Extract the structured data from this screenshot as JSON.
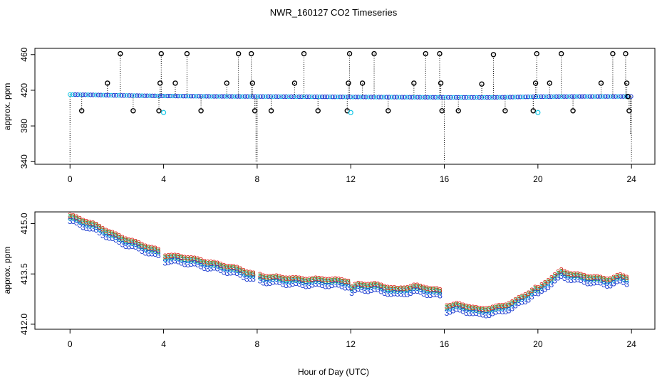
{
  "title": "NWR_160127  CO2 Timeseries",
  "xlabel": "Hour of Day (UTC)",
  "chart_data": [
    {
      "type": "scatter",
      "name": "top-panel",
      "ylabel": "approx. ppm",
      "xlim": [
        -1.5,
        25
      ],
      "ylim": [
        337,
        467
      ],
      "xticks": [
        "0",
        "4",
        "8",
        "12",
        "16",
        "20",
        "24"
      ],
      "yticks": [
        "340",
        "380",
        "420",
        "460"
      ],
      "baseline": {
        "x": [
          0,
          1,
          2,
          4,
          6,
          8,
          12,
          16,
          18,
          20,
          22,
          24
        ],
        "y": [
          415.2,
          414.8,
          414.3,
          413.6,
          413.2,
          413.0,
          412.5,
          412.1,
          412.0,
          412.8,
          413.1,
          413.0
        ]
      },
      "outliers_high": [
        {
          "x": 1.6,
          "y": 428
        },
        {
          "x": 2.15,
          "y": 461
        },
        {
          "x": 3.85,
          "y": 428
        },
        {
          "x": 3.9,
          "y": 461
        },
        {
          "x": 4.5,
          "y": 428
        },
        {
          "x": 5.0,
          "y": 461
        },
        {
          "x": 6.7,
          "y": 428
        },
        {
          "x": 7.2,
          "y": 461
        },
        {
          "x": 7.75,
          "y": 461
        },
        {
          "x": 7.8,
          "y": 428
        },
        {
          "x": 9.6,
          "y": 428
        },
        {
          "x": 10.0,
          "y": 461
        },
        {
          "x": 11.9,
          "y": 428
        },
        {
          "x": 11.95,
          "y": 461
        },
        {
          "x": 12.5,
          "y": 428
        },
        {
          "x": 13.0,
          "y": 461
        },
        {
          "x": 14.7,
          "y": 428
        },
        {
          "x": 15.2,
          "y": 461
        },
        {
          "x": 15.8,
          "y": 461
        },
        {
          "x": 15.85,
          "y": 428
        },
        {
          "x": 17.6,
          "y": 427
        },
        {
          "x": 18.1,
          "y": 460
        },
        {
          "x": 19.9,
          "y": 428
        },
        {
          "x": 19.95,
          "y": 461
        },
        {
          "x": 20.5,
          "y": 428
        },
        {
          "x": 21.0,
          "y": 461
        },
        {
          "x": 22.7,
          "y": 428
        },
        {
          "x": 23.2,
          "y": 461
        },
        {
          "x": 23.75,
          "y": 461
        },
        {
          "x": 23.8,
          "y": 428
        },
        {
          "x": 23.85,
          "y": 413
        }
      ],
      "outliers_low": [
        {
          "x": 0.5,
          "y": 397
        },
        {
          "x": 2.7,
          "y": 397
        },
        {
          "x": 3.8,
          "y": 397
        },
        {
          "x": 5.6,
          "y": 397
        },
        {
          "x": 7.9,
          "y": 397
        },
        {
          "x": 8.6,
          "y": 397
        },
        {
          "x": 10.6,
          "y": 397
        },
        {
          "x": 11.85,
          "y": 397
        },
        {
          "x": 13.6,
          "y": 397
        },
        {
          "x": 15.9,
          "y": 397
        },
        {
          "x": 16.6,
          "y": 397
        },
        {
          "x": 18.6,
          "y": 397
        },
        {
          "x": 19.8,
          "y": 397
        },
        {
          "x": 21.5,
          "y": 397
        },
        {
          "x": 23.9,
          "y": 397
        }
      ],
      "cyan_points": [
        {
          "x": 4.0,
          "y": 395
        },
        {
          "x": 12.0,
          "y": 395
        },
        {
          "x": 20.0,
          "y": 395
        }
      ],
      "down_spikes": [
        {
          "x": 0.0,
          "y": 340
        },
        {
          "x": 7.95,
          "y": 340
        },
        {
          "x": 8.0,
          "y": 340
        },
        {
          "x": 16.0,
          "y": 340
        },
        {
          "x": 23.95,
          "y": 370
        },
        {
          "x": 24.0,
          "y": 340
        }
      ],
      "colors": {
        "baseline": "#1f3fd1",
        "baseline_alt": "#17c7e6",
        "outlier": "#000000",
        "cyan": "#17c7e6"
      }
    },
    {
      "type": "scatter",
      "name": "bottom-panel",
      "ylabel": "approx. ppm",
      "xlim": [
        -1.5,
        25
      ],
      "ylim": [
        411.85,
        415.35
      ],
      "xticks": [
        "0",
        "4",
        "8",
        "12",
        "16",
        "20",
        "24"
      ],
      "yticks": [
        "412.0",
        "413.5",
        "415.0"
      ],
      "marker_text": "3",
      "series": [
        {
          "name": "main",
          "color": "#1f3fd1",
          "x": [
            0.0,
            1.0,
            2.0,
            3.0,
            3.8,
            3.95,
            4.0,
            4.3,
            5.0,
            6.0,
            7.0,
            7.9,
            8.0,
            8.2,
            9.0,
            10.0,
            11.0,
            11.9,
            12.0,
            12.3,
            13.0,
            14.0,
            14.7,
            15.2,
            15.9,
            16.0,
            16.5,
            17.0,
            17.5,
            18.0,
            18.5,
            19.0,
            19.5,
            19.9,
            20.0,
            20.3,
            20.7,
            21.0,
            21.5,
            22.0,
            22.5,
            23.0,
            23.5,
            23.9
          ],
          "y": [
            415.05,
            414.8,
            414.45,
            414.2,
            414.0,
            413.85,
            413.85,
            413.85,
            413.8,
            413.65,
            413.5,
            413.3,
            413.3,
            413.25,
            413.2,
            413.15,
            413.15,
            413.1,
            412.9,
            413.0,
            413.0,
            412.85,
            412.95,
            412.9,
            412.8,
            412.35,
            412.4,
            412.35,
            412.25,
            412.3,
            412.35,
            412.5,
            412.7,
            412.9,
            412.85,
            413.05,
            413.25,
            413.4,
            413.3,
            413.25,
            413.2,
            413.15,
            413.25,
            413.2
          ]
        },
        {
          "name": "green",
          "color": "#1fbf3a",
          "offset": 0.08
        },
        {
          "name": "cyan",
          "color": "#17c7e6",
          "offset": 0.04
        },
        {
          "name": "red",
          "color": "#e0201a",
          "offset": 0.12
        }
      ]
    }
  ]
}
